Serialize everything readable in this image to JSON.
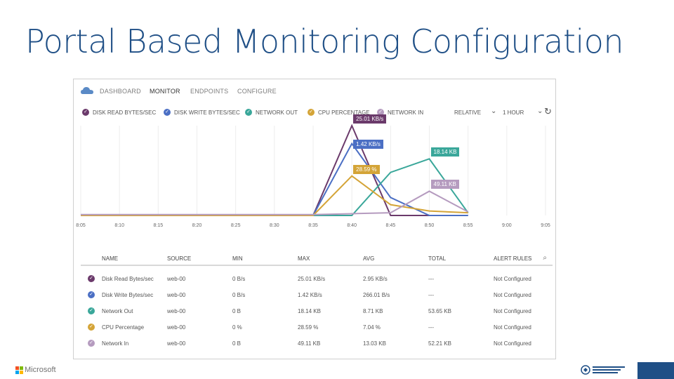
{
  "slide": {
    "title": "Portal Based Monitoring Configuration"
  },
  "nav": {
    "items": [
      {
        "label": "DASHBOARD",
        "active": false
      },
      {
        "label": "MONITOR",
        "active": true
      },
      {
        "label": "ENDPOINTS",
        "active": false
      },
      {
        "label": "CONFIGURE",
        "active": false
      }
    ]
  },
  "legend": {
    "series": [
      {
        "label": "DISK READ BYTES/SEC",
        "color": "#6b3a6b"
      },
      {
        "label": "DISK WRITE BYTES/SEC",
        "color": "#4b6fc4"
      },
      {
        "label": "NETWORK OUT",
        "color": "#3aa79a"
      },
      {
        "label": "CPU PERCENTAGE",
        "color": "#d4a437"
      },
      {
        "label": "NETWORK IN",
        "color": "#b59bbf"
      }
    ],
    "relative_label": "RELATIVE",
    "range_label": "1 HOUR"
  },
  "chart_data": {
    "type": "line",
    "x": [
      "8:05",
      "8:10",
      "8:15",
      "8:20",
      "8:25",
      "8:30",
      "8:35",
      "8:40",
      "8:45",
      "8:50",
      "8:55",
      "9:00",
      "9:05"
    ],
    "x_tick_labels": [
      "8:05",
      "8:10",
      "8:15",
      "8:20",
      "8:25",
      "8:30",
      "8:35",
      "8:40",
      "8:45",
      "8:50",
      "8:55",
      "9:00",
      "9:05"
    ],
    "ylim": [
      0,
      100
    ],
    "grid": true,
    "series": [
      {
        "name": "DISK READ BYTES/SEC",
        "color": "#6b3a6b",
        "values": [
          0,
          0,
          0,
          0,
          0,
          0,
          0,
          100,
          0,
          0,
          0,
          null,
          null
        ]
      },
      {
        "name": "DISK WRITE BYTES/SEC",
        "color": "#4b6fc4",
        "values": [
          0,
          0,
          0,
          0,
          0,
          0,
          0,
          80,
          20,
          0,
          0,
          null,
          null
        ]
      },
      {
        "name": "NETWORK OUT",
        "color": "#3aa79a",
        "values": [
          0,
          0,
          0,
          0,
          0,
          0,
          0,
          0,
          48,
          63,
          3,
          null,
          null
        ]
      },
      {
        "name": "CPU PERCENTAGE",
        "color": "#d4a437",
        "values": [
          0,
          0,
          0,
          0,
          0,
          0,
          0,
          44,
          12,
          5,
          3,
          null,
          null
        ]
      },
      {
        "name": "NETWORK IN",
        "color": "#b59bbf",
        "values": [
          1,
          1,
          1,
          1,
          1,
          1,
          1,
          2,
          3,
          27,
          4,
          null,
          null
        ]
      }
    ],
    "annotations": [
      {
        "text": "25.01 KB/s",
        "series": 0
      },
      {
        "text": "1.42 KB/s",
        "series": 1
      },
      {
        "text": "18.14 KB",
        "series": 2
      },
      {
        "text": "28.59 %",
        "series": 3
      },
      {
        "text": "49.11 KB",
        "series": 4
      }
    ]
  },
  "table": {
    "headers": [
      "NAME",
      "SOURCE",
      "MIN",
      "MAX",
      "AVG",
      "TOTAL",
      "ALERT RULES"
    ],
    "rows": [
      {
        "name": "Disk Read Bytes/sec",
        "source": "web-00",
        "min": "0 B/s",
        "max": "25.01 KB/s",
        "avg": "2.95 KB/s",
        "total": "---",
        "alert": "Not Configured",
        "color": "#6b3a6b"
      },
      {
        "name": "Disk Write Bytes/sec",
        "source": "web-00",
        "min": "0 B/s",
        "max": "1.42 KB/s",
        "avg": "266.01 B/s",
        "total": "---",
        "alert": "Not Configured",
        "color": "#4b6fc4"
      },
      {
        "name": "Network Out",
        "source": "web-00",
        "min": "0 B",
        "max": "18.14 KB",
        "avg": "8.71 KB",
        "total": "53.65 KB",
        "alert": "Not Configured",
        "color": "#3aa79a"
      },
      {
        "name": "CPU Percentage",
        "source": "web-00",
        "min": "0 %",
        "max": "28.59 %",
        "avg": "7.04 %",
        "total": "---",
        "alert": "Not Configured",
        "color": "#d4a437"
      },
      {
        "name": "Network In",
        "source": "web-00",
        "min": "0 B",
        "max": "49.11 KB",
        "avg": "13.03 KB",
        "total": "52.21 KB",
        "alert": "Not Configured",
        "color": "#b59bbf"
      }
    ]
  },
  "footer": {
    "brand": "Microsoft",
    "event_logo_lines": [
      "SHARE POINT",
      "SAT"
    ]
  }
}
